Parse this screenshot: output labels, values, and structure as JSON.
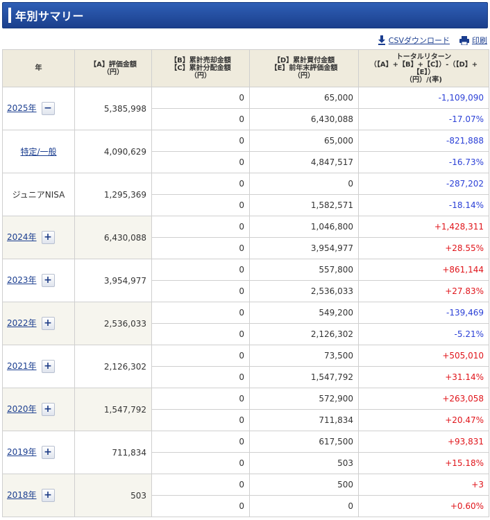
{
  "header": {
    "title": "年別サマリー"
  },
  "toolbar": {
    "csv_label": "CSVダウンロード",
    "print_label": "印刷"
  },
  "table": {
    "headers": {
      "year": "年",
      "col_a": [
        "【A】評価金額",
        "（円）"
      ],
      "col_bc": [
        "【B】累計売却金額",
        "【C】累計分配金額",
        "（円）"
      ],
      "col_de": [
        "【D】累計買付金額",
        "【E】前年末評価金額",
        "（円）"
      ],
      "col_total": [
        "トータルリターン",
        "（【A】+【B】+【C】）-（【D】+【E】）",
        "（円）/(率)"
      ]
    },
    "rows": [
      {
        "label": "2025年",
        "type": "year",
        "toggle": "−",
        "a": "5,385,998",
        "bc": [
          "0",
          "0"
        ],
        "de": [
          "65,000",
          "6,430,088"
        ],
        "total": [
          "-1,109,090",
          "-17.07%"
        ],
        "sign": "neg"
      },
      {
        "label": "特定/一般",
        "type": "sub",
        "a": "4,090,629",
        "bc": [
          "0",
          "0"
        ],
        "de": [
          "65,000",
          "4,847,517"
        ],
        "total": [
          "-821,888",
          "-16.73%"
        ],
        "sign": "neg"
      },
      {
        "label": "ジュニアNISA",
        "type": "plain",
        "a": "1,295,369",
        "bc": [
          "0",
          "0"
        ],
        "de": [
          "0",
          "1,582,571"
        ],
        "total": [
          "-287,202",
          "-18.14%"
        ],
        "sign": "neg"
      },
      {
        "label": "2024年",
        "type": "year",
        "toggle": "+",
        "a": "6,430,088",
        "bc": [
          "0",
          "0"
        ],
        "de": [
          "1,046,800",
          "3,954,977"
        ],
        "total": [
          "+1,428,311",
          "+28.55%"
        ],
        "sign": "pos"
      },
      {
        "label": "2023年",
        "type": "year",
        "toggle": "+",
        "a": "3,954,977",
        "bc": [
          "0",
          "0"
        ],
        "de": [
          "557,800",
          "2,536,033"
        ],
        "total": [
          "+861,144",
          "+27.83%"
        ],
        "sign": "pos"
      },
      {
        "label": "2022年",
        "type": "year",
        "toggle": "+",
        "a": "2,536,033",
        "bc": [
          "0",
          "0"
        ],
        "de": [
          "549,200",
          "2,126,302"
        ],
        "total": [
          "-139,469",
          "-5.21%"
        ],
        "sign": "neg"
      },
      {
        "label": "2021年",
        "type": "year",
        "toggle": "+",
        "a": "2,126,302",
        "bc": [
          "0",
          "0"
        ],
        "de": [
          "73,500",
          "1,547,792"
        ],
        "total": [
          "+505,010",
          "+31.14%"
        ],
        "sign": "pos"
      },
      {
        "label": "2020年",
        "type": "year",
        "toggle": "+",
        "a": "1,547,792",
        "bc": [
          "0",
          "0"
        ],
        "de": [
          "572,900",
          "711,834"
        ],
        "total": [
          "+263,058",
          "+20.47%"
        ],
        "sign": "pos"
      },
      {
        "label": "2019年",
        "type": "year",
        "toggle": "+",
        "a": "711,834",
        "bc": [
          "0",
          "0"
        ],
        "de": [
          "617,500",
          "503"
        ],
        "total": [
          "+93,831",
          "+15.18%"
        ],
        "sign": "pos"
      },
      {
        "label": "2018年",
        "type": "year",
        "toggle": "+",
        "a": "503",
        "bc": [
          "0",
          "0"
        ],
        "de": [
          "500",
          "0"
        ],
        "total": [
          "+3",
          "+0.60%"
        ],
        "sign": "pos"
      }
    ]
  },
  "colors": {
    "negative": "#2a3fd6",
    "positive": "#e0141a",
    "header_bg": "#efebdd",
    "title_bg": "#1b3f8c"
  },
  "icons": {
    "csv": "download-icon",
    "print": "printer-icon"
  }
}
